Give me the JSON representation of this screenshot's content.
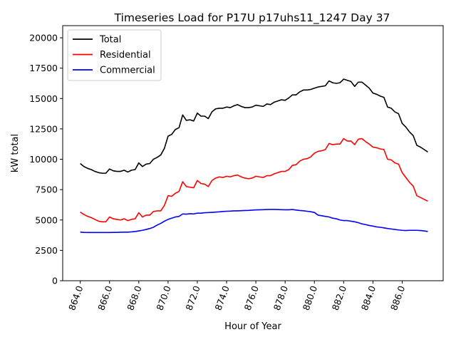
{
  "chart_data": {
    "type": "line",
    "title": "Timeseries Load for P17U p17uhs11_1247  Day 37",
    "xlabel": "Hour of Year",
    "ylabel": "kW total",
    "xlim": [
      862.8,
      888.8
    ],
    "ylim": [
      0,
      21000
    ],
    "xticks": [
      864,
      866,
      868,
      870,
      872,
      874,
      876,
      878,
      880,
      882,
      884,
      886
    ],
    "xtick_labels": [
      "864.0",
      "866.0",
      "868.0",
      "870.0",
      "872.0",
      "874.0",
      "876.0",
      "878.0",
      "880.0",
      "882.0",
      "884.0",
      "886.0"
    ],
    "yticks": [
      0,
      2500,
      5000,
      7500,
      10000,
      12500,
      15000,
      17500,
      20000
    ],
    "ytick_labels": [
      "0",
      "2500",
      "5000",
      "7500",
      "10000",
      "12500",
      "15000",
      "17500",
      "20000"
    ],
    "grid": false,
    "legend_position": "top-left",
    "x": [
      864.0,
      864.25,
      864.5,
      864.75,
      865.0,
      865.25,
      865.5,
      865.75,
      866.0,
      866.25,
      866.5,
      866.75,
      867.0,
      867.25,
      867.5,
      867.75,
      868.0,
      868.25,
      868.5,
      868.75,
      869.0,
      869.25,
      869.5,
      869.75,
      870.0,
      870.25,
      870.5,
      870.75,
      871.0,
      871.25,
      871.5,
      871.75,
      872.0,
      872.25,
      872.5,
      872.75,
      873.0,
      873.25,
      873.5,
      873.75,
      874.0,
      874.25,
      874.5,
      874.75,
      875.0,
      875.25,
      875.5,
      875.75,
      876.0,
      876.25,
      876.5,
      876.75,
      877.0,
      877.25,
      877.5,
      877.75,
      878.0,
      878.25,
      878.5,
      878.75,
      879.0,
      879.25,
      879.5,
      879.75,
      880.0,
      880.25,
      880.5,
      880.75,
      881.0,
      881.25,
      881.5,
      881.75,
      882.0,
      882.25,
      882.5,
      882.75,
      883.0,
      883.25,
      883.5,
      883.75,
      884.0,
      884.25,
      884.5,
      884.75,
      885.0,
      885.25,
      885.5,
      885.75,
      886.0,
      886.25,
      886.5,
      886.75,
      887.0,
      887.25,
      887.5,
      887.75
    ],
    "series": [
      {
        "name": "Total",
        "color": "#000000",
        "values": [
          9650,
          9400,
          9250,
          9150,
          9000,
          8900,
          8850,
          8850,
          9200,
          9050,
          9000,
          9000,
          9100,
          8950,
          9100,
          9150,
          9700,
          9400,
          9600,
          9650,
          10000,
          10150,
          10350,
          10900,
          11900,
          12050,
          12450,
          12600,
          13650,
          13200,
          13250,
          13150,
          13800,
          13550,
          13550,
          13350,
          13900,
          14150,
          14200,
          14200,
          14300,
          14250,
          14400,
          14500,
          14350,
          14250,
          14250,
          14300,
          14450,
          14400,
          14350,
          14550,
          14500,
          14700,
          14800,
          14900,
          14850,
          15050,
          15300,
          15300,
          15550,
          15700,
          15700,
          15750,
          15850,
          15950,
          16000,
          16050,
          16450,
          16300,
          16250,
          16300,
          16600,
          16500,
          16400,
          16000,
          16350,
          16350,
          16100,
          15850,
          15450,
          15350,
          15200,
          15100,
          14300,
          14200,
          13900,
          13750,
          12950,
          12650,
          12250,
          11950,
          11150,
          11000,
          10800,
          10600
        ]
      },
      {
        "name": "Residential",
        "color": "#ff0000",
        "values": [
          5650,
          5450,
          5300,
          5200,
          5050,
          4900,
          4850,
          4850,
          5250,
          5100,
          5050,
          5000,
          5100,
          4950,
          5050,
          5100,
          5600,
          5250,
          5400,
          5400,
          5700,
          5750,
          5750,
          6200,
          7000,
          6950,
          7200,
          7350,
          8150,
          7750,
          7700,
          7650,
          8250,
          8000,
          7950,
          7750,
          8250,
          8450,
          8550,
          8500,
          8600,
          8550,
          8650,
          8700,
          8550,
          8450,
          8400,
          8450,
          8600,
          8550,
          8500,
          8650,
          8650,
          8800,
          8900,
          9000,
          9000,
          9150,
          9500,
          9550,
          9850,
          10000,
          10050,
          10200,
          10500,
          10650,
          10700,
          10800,
          11300,
          11200,
          11250,
          11250,
          11700,
          11500,
          11500,
          11200,
          11650,
          11700,
          11450,
          11250,
          11000,
          10950,
          10850,
          10800,
          10000,
          9950,
          9700,
          9600,
          8900,
          8500,
          8100,
          7800,
          7000,
          6850,
          6700,
          6550
        ]
      },
      {
        "name": "Commercial",
        "color": "#0000ff",
        "values": [
          4000,
          3980,
          3970,
          3970,
          3970,
          3970,
          3970,
          3970,
          3970,
          3980,
          3980,
          3990,
          4000,
          4000,
          4020,
          4050,
          4100,
          4150,
          4220,
          4300,
          4400,
          4580,
          4720,
          4900,
          5050,
          5150,
          5250,
          5300,
          5500,
          5480,
          5520,
          5500,
          5560,
          5560,
          5600,
          5610,
          5630,
          5650,
          5670,
          5700,
          5720,
          5730,
          5750,
          5750,
          5770,
          5780,
          5790,
          5810,
          5830,
          5840,
          5850,
          5860,
          5870,
          5870,
          5860,
          5850,
          5840,
          5840,
          5860,
          5820,
          5780,
          5760,
          5720,
          5680,
          5620,
          5400,
          5350,
          5300,
          5250,
          5150,
          5100,
          5000,
          4950,
          4950,
          4900,
          4850,
          4780,
          4680,
          4620,
          4550,
          4500,
          4430,
          4400,
          4350,
          4300,
          4260,
          4220,
          4180,
          4150,
          4130,
          4150,
          4150,
          4150,
          4130,
          4100,
          4050
        ]
      }
    ]
  }
}
